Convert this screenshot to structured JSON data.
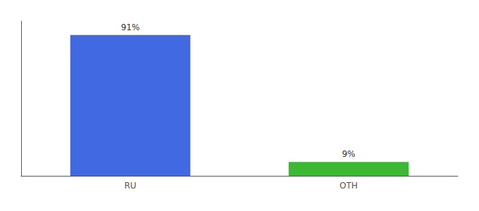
{
  "chart_data": {
    "type": "bar",
    "categories": [
      "RU",
      "OTH"
    ],
    "values": [
      91,
      9
    ],
    "value_labels": [
      "91%",
      "9%"
    ],
    "colors": [
      "#4169e1",
      "#3cb832"
    ],
    "ylim": [
      0,
      100
    ],
    "data_labels": true,
    "tick_labels": "x",
    "grid": false
  }
}
